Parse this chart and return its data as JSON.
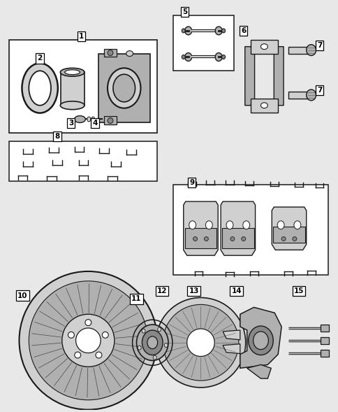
{
  "background_color": "#e8e8e8",
  "line_color": "#1a1a1a",
  "white": "#ffffff",
  "light_gray": "#d0d0d0",
  "mid_gray": "#b0b0b0",
  "dark_gray": "#888888",
  "figsize": [
    4.85,
    5.89
  ],
  "dpi": 100
}
